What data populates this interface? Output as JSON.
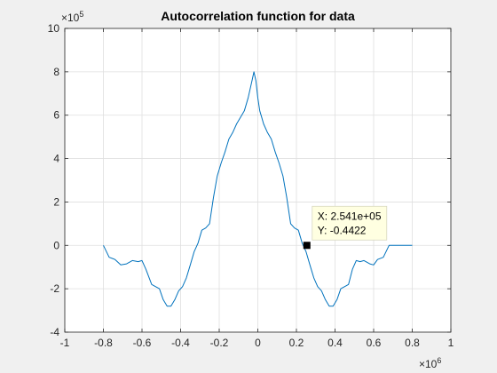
{
  "chart_data": {
    "type": "line",
    "title": "Autocorrelation function for data",
    "xlabel": "",
    "ylabel": "",
    "x_exponent_label": "×10",
    "x_exponent_power": "6",
    "y_exponent_label": "×10",
    "y_exponent_power": "5",
    "xlim": [
      -1.0,
      1.0
    ],
    "ylim": [
      -4,
      10
    ],
    "x_ticks": [
      "-1",
      "-0.8",
      "-0.6",
      "-0.4",
      "-0.2",
      "0",
      "0.2",
      "0.4",
      "0.6",
      "0.8",
      "1"
    ],
    "y_ticks": [
      "-4",
      "-2",
      "0",
      "2",
      "4",
      "6",
      "8",
      "10"
    ],
    "x_tick_values": [
      -1.0,
      -0.8,
      -0.6,
      -0.4,
      -0.2,
      0.0,
      0.2,
      0.4,
      0.6,
      0.8,
      1.0
    ],
    "y_tick_values": [
      -4,
      -2,
      0,
      2,
      4,
      6,
      8,
      10
    ],
    "grid": true,
    "line_color": "#0072bd",
    "x_units_note": "x values in units of 1e6, y values in units of 1e5",
    "series": [
      {
        "x": [
          -0.8,
          -0.77,
          -0.74,
          -0.71,
          -0.68,
          -0.65,
          -0.62,
          -0.6,
          -0.58,
          -0.55,
          -0.53,
          -0.51,
          -0.49,
          -0.47,
          -0.45,
          -0.43,
          -0.41,
          -0.39,
          -0.37,
          -0.35,
          -0.33,
          -0.31,
          -0.29,
          -0.27,
          -0.25,
          -0.23,
          -0.21,
          -0.19,
          -0.17,
          -0.15,
          -0.13,
          -0.11,
          -0.09,
          -0.07,
          -0.05,
          -0.03,
          -0.02,
          -0.01,
          0.0,
          0.01,
          0.02,
          0.03,
          0.05,
          0.07,
          0.09,
          0.11,
          0.13,
          0.15,
          0.17,
          0.19,
          0.21,
          0.23,
          0.25,
          0.27,
          0.29,
          0.31,
          0.33,
          0.35,
          0.37,
          0.39,
          0.41,
          0.43,
          0.45,
          0.47,
          0.49,
          0.51,
          0.53,
          0.55,
          0.58,
          0.6,
          0.62,
          0.65,
          0.68,
          0.71,
          0.74,
          0.77,
          0.8
        ],
        "y": [
          0.0,
          -0.55,
          -0.65,
          -0.9,
          -0.85,
          -0.7,
          -0.75,
          -0.7,
          -1.1,
          -1.8,
          -1.9,
          -2.0,
          -2.5,
          -2.8,
          -2.8,
          -2.5,
          -2.1,
          -1.9,
          -1.5,
          -0.9,
          -0.3,
          0.1,
          0.7,
          0.8,
          1.0,
          2.2,
          3.2,
          3.8,
          4.3,
          4.9,
          5.2,
          5.6,
          5.9,
          6.2,
          6.8,
          7.6,
          8.0,
          7.6,
          6.8,
          6.2,
          5.9,
          5.6,
          5.2,
          4.9,
          4.3,
          3.8,
          3.2,
          2.2,
          1.0,
          0.8,
          0.7,
          0.1,
          -0.3,
          -0.9,
          -1.5,
          -1.9,
          -2.1,
          -2.5,
          -2.8,
          -2.8,
          -2.5,
          -2.0,
          -1.9,
          -1.8,
          -1.1,
          -0.7,
          -0.75,
          -0.7,
          -0.85,
          -0.9,
          -0.65,
          -0.55,
          0.0,
          0.0,
          0.0,
          0.0,
          0.0
        ]
      }
    ],
    "datatip": {
      "x": 0.2541,
      "y": -4.4e-06,
      "x_label": "X: 2.541e+05",
      "y_label": "Y: -0.4422"
    }
  }
}
